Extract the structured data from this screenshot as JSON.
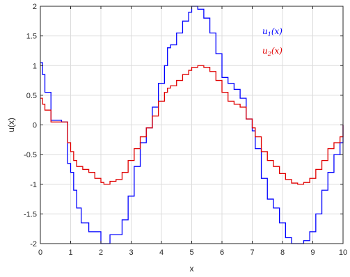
{
  "chart_data": {
    "type": "line",
    "title": "",
    "xlabel": "x",
    "ylabel": "u(x)",
    "xlim": [
      0,
      10
    ],
    "ylim": [
      -2,
      2
    ],
    "xticks": [
      0,
      1,
      2,
      3,
      4,
      5,
      6,
      7,
      8,
      9,
      10
    ],
    "yticks": [
      -2,
      -1.5,
      -1,
      -0.5,
      0,
      0.5,
      1,
      1.5,
      2
    ],
    "xtick_labels": [
      "0",
      "1",
      "2",
      "3",
      "4",
      "5",
      "6",
      "7",
      "8",
      "9",
      "10"
    ],
    "ytick_labels": [
      "-2",
      "-1.5",
      "-1",
      "-0.5",
      "0",
      "0.5",
      "1",
      "1.5",
      "2"
    ],
    "grid": true,
    "legend_position": "top-right",
    "series": [
      {
        "name": "u_1(x)",
        "label_main": "u",
        "label_sub": "1",
        "label_rest": "(x)",
        "color": "#0000ff",
        "step": true,
        "x": [
          0,
          0.07,
          0.15,
          0.35,
          0.7,
          0.9,
          1.0,
          1.1,
          1.2,
          1.35,
          1.5,
          1.6,
          2.0,
          2.1,
          2.3,
          2.5,
          2.7,
          2.9,
          3.1,
          3.3,
          3.5,
          3.7,
          3.9,
          4.1,
          4.2,
          4.3,
          4.5,
          4.7,
          4.9,
          5.0,
          5.2,
          5.4,
          5.6,
          5.8,
          6.0,
          6.2,
          6.4,
          6.6,
          6.8,
          7.0,
          7.1,
          7.3,
          7.5,
          7.7,
          7.9,
          8.1,
          8.3,
          8.5,
          8.7,
          8.9,
          9.1,
          9.3,
          9.5,
          9.7,
          9.9,
          10.0
        ],
        "y": [
          1.05,
          0.85,
          0.55,
          0.08,
          0.05,
          -0.65,
          -0.8,
          -1.1,
          -1.4,
          -1.65,
          -1.65,
          -1.8,
          -2.0,
          -2.0,
          -1.85,
          -1.85,
          -1.6,
          -1.2,
          -0.7,
          -0.3,
          -0.05,
          0.3,
          0.7,
          1.0,
          1.3,
          1.35,
          1.55,
          1.75,
          1.9,
          2.0,
          1.95,
          1.8,
          1.55,
          1.2,
          0.8,
          0.7,
          0.6,
          0.45,
          0.1,
          -0.1,
          -0.4,
          -0.9,
          -1.25,
          -1.4,
          -1.65,
          -1.9,
          -2.0,
          -2.0,
          -1.95,
          -1.8,
          -1.5,
          -1.1,
          -0.8,
          -0.5,
          -0.3,
          0.0
        ]
      },
      {
        "name": "u_2(x)",
        "label_main": "u",
        "label_sub": "2",
        "label_rest": "(x)",
        "color": "#e00000",
        "step": true,
        "x": [
          0,
          0.07,
          0.15,
          0.35,
          0.7,
          0.9,
          1.0,
          1.1,
          1.2,
          1.4,
          1.6,
          1.8,
          2.0,
          2.1,
          2.3,
          2.5,
          2.7,
          2.9,
          3.1,
          3.3,
          3.5,
          3.7,
          3.9,
          4.1,
          4.2,
          4.3,
          4.5,
          4.7,
          4.9,
          5.0,
          5.2,
          5.4,
          5.6,
          5.8,
          6.0,
          6.2,
          6.4,
          6.6,
          6.8,
          7.0,
          7.1,
          7.3,
          7.5,
          7.7,
          7.9,
          8.1,
          8.3,
          8.5,
          8.7,
          8.9,
          9.1,
          9.3,
          9.5,
          9.7,
          9.9,
          10.0
        ],
        "y": [
          0.45,
          0.35,
          0.25,
          0.05,
          0.05,
          -0.3,
          -0.45,
          -0.6,
          -0.7,
          -0.75,
          -0.8,
          -0.9,
          -0.97,
          -1.0,
          -0.95,
          -0.92,
          -0.8,
          -0.6,
          -0.4,
          -0.2,
          -0.05,
          0.15,
          0.4,
          0.55,
          0.62,
          0.66,
          0.75,
          0.85,
          0.92,
          0.97,
          1.0,
          0.97,
          0.9,
          0.75,
          0.55,
          0.4,
          0.35,
          0.3,
          0.1,
          -0.05,
          -0.2,
          -0.45,
          -0.6,
          -0.7,
          -0.82,
          -0.92,
          -0.98,
          -1.0,
          -0.97,
          -0.9,
          -0.75,
          -0.6,
          -0.4,
          -0.3,
          -0.2,
          0.0
        ]
      }
    ]
  }
}
